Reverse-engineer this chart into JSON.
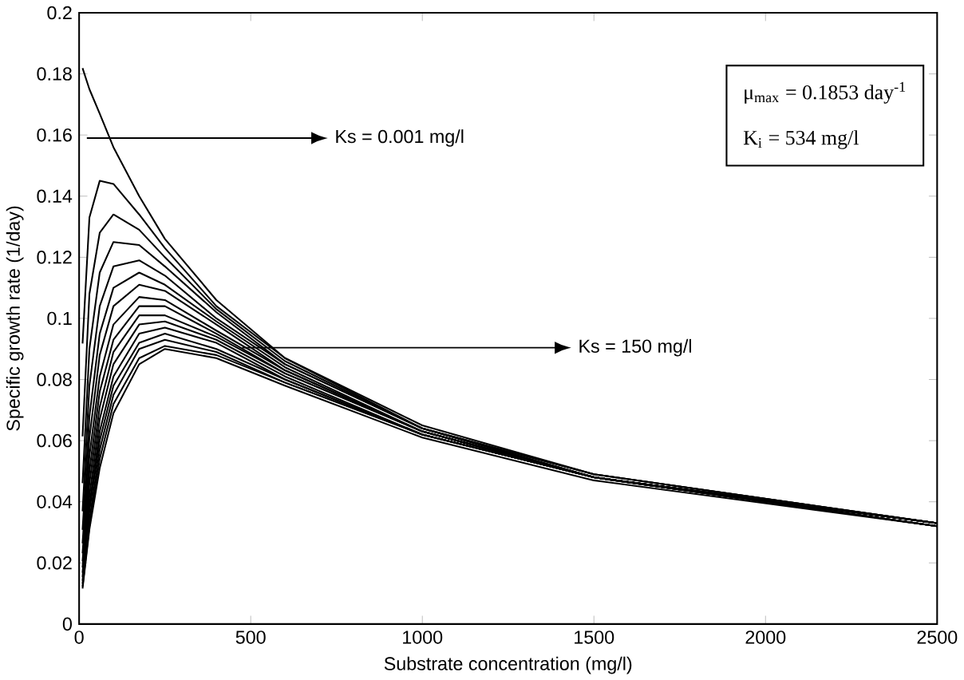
{
  "chart_data": {
    "type": "line",
    "xlabel": "Substrate concentration (mg/l)",
    "ylabel": "Specific growth rate (1/day)",
    "xlim": [
      0,
      2500
    ],
    "ylim": [
      0,
      0.2
    ],
    "xticks": [
      0,
      500,
      1000,
      1500,
      2000,
      2500
    ],
    "yticks": [
      0,
      0.02,
      0.04,
      0.06,
      0.08,
      0.1,
      0.12,
      0.14,
      0.16,
      0.18,
      0.2
    ],
    "x": [
      10,
      30,
      60,
      100,
      175,
      250,
      400,
      600,
      1000,
      1500,
      2500
    ],
    "series": [
      {
        "color": "#000000",
        "values": [
          0.1819,
          0.175,
          0.167,
          0.156,
          0.14,
          0.126,
          0.106,
          0.087,
          0.065,
          0.049,
          0.033
        ]
      },
      {
        "color": "#000000",
        "values": [
          0.0918,
          0.133,
          0.145,
          0.144,
          0.134,
          0.123,
          0.104,
          0.087,
          0.064,
          0.049,
          0.033
        ]
      },
      {
        "color": "#000000",
        "values": [
          0.0614,
          0.108,
          0.128,
          0.134,
          0.129,
          0.12,
          0.103,
          0.086,
          0.064,
          0.049,
          0.033
        ]
      },
      {
        "color": "#000000",
        "values": [
          0.0461,
          0.09,
          0.115,
          0.125,
          0.124,
          0.117,
          0.102,
          0.085,
          0.064,
          0.048,
          0.033
        ]
      },
      {
        "color": "#000000",
        "values": [
          0.0369,
          0.078,
          0.104,
          0.117,
          0.119,
          0.114,
          0.1,
          0.085,
          0.064,
          0.048,
          0.033
        ]
      },
      {
        "color": "#000000",
        "values": [
          0.0308,
          0.068,
          0.095,
          0.11,
          0.115,
          0.111,
          0.099,
          0.084,
          0.063,
          0.048,
          0.033
        ]
      },
      {
        "color": "#000000",
        "values": [
          0.0264,
          0.061,
          0.088,
          0.104,
          0.111,
          0.109,
          0.098,
          0.083,
          0.063,
          0.048,
          0.033
        ]
      },
      {
        "color": "#000000",
        "values": [
          0.0231,
          0.055,
          0.081,
          0.098,
          0.107,
          0.106,
          0.096,
          0.083,
          0.063,
          0.048,
          0.033
        ]
      },
      {
        "color": "#000000",
        "values": [
          0.0205,
          0.05,
          0.076,
          0.093,
          0.104,
          0.104,
          0.095,
          0.082,
          0.063,
          0.048,
          0.033
        ]
      },
      {
        "color": "#000000",
        "values": [
          0.0185,
          0.046,
          0.071,
          0.089,
          0.101,
          0.101,
          0.094,
          0.082,
          0.063,
          0.048,
          0.033
        ]
      },
      {
        "color": "#000000",
        "values": [
          0.0168,
          0.042,
          0.067,
          0.085,
          0.098,
          0.099,
          0.093,
          0.081,
          0.062,
          0.048,
          0.032
        ]
      },
      {
        "color": "#000000",
        "values": [
          0.0154,
          0.039,
          0.063,
          0.081,
          0.095,
          0.097,
          0.092,
          0.08,
          0.062,
          0.048,
          0.032
        ]
      },
      {
        "color": "#000000",
        "values": [
          0.0142,
          0.037,
          0.06,
          0.078,
          0.092,
          0.095,
          0.09,
          0.08,
          0.062,
          0.048,
          0.032
        ]
      },
      {
        "color": "#000000",
        "values": [
          0.0132,
          0.034,
          0.057,
          0.075,
          0.09,
          0.093,
          0.089,
          0.079,
          0.062,
          0.048,
          0.032
        ]
      },
      {
        "color": "#000000",
        "values": [
          0.0123,
          0.032,
          0.054,
          0.072,
          0.087,
          0.091,
          0.088,
          0.079,
          0.062,
          0.048,
          0.032
        ]
      },
      {
        "color": "#000000",
        "values": [
          0.0116,
          0.031,
          0.051,
          0.069,
          0.085,
          0.09,
          0.087,
          0.078,
          0.061,
          0.047,
          0.032
        ]
      }
    ],
    "annotations": [
      "Ks = 0.001 mg/l",
      "Ks = 150 mg/l",
      "μ$_{max}$ = 0.1853 day$^{-1}$",
      "K$_{i}$ = 534 mg/l"
    ]
  }
}
